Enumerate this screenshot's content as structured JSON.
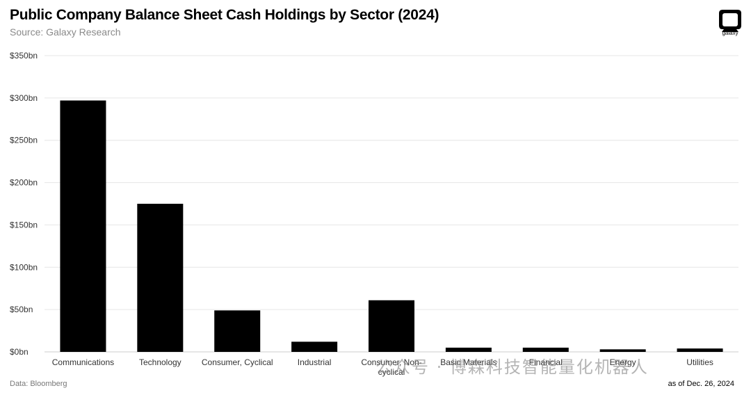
{
  "header": {
    "title": "Public Company Balance Sheet Cash Holdings by Sector (2024)",
    "subtitle": "Source: Galaxy Research",
    "logo_text": "galaxy"
  },
  "footer": {
    "data_source": "Data: Bloomberg",
    "as_of": "as of Dec. 26, 2024"
  },
  "watermark": "公众号 · 博森科技智能量化机器人",
  "colors": {
    "bar": "#000000",
    "grid": "#e6e6e6",
    "axis": "#cccccc"
  },
  "chart_data": {
    "type": "bar",
    "title": "Public Company Balance Sheet Cash Holdings by Sector (2024)",
    "subtitle": "Source: Galaxy Research",
    "xlabel": "",
    "ylabel": "",
    "ylim": [
      0,
      350
    ],
    "y_ticks": [
      {
        "value": 0,
        "label": "$0bn"
      },
      {
        "value": 50,
        "label": "$50bn"
      },
      {
        "value": 100,
        "label": "$100bn"
      },
      {
        "value": 150,
        "label": "$150bn"
      },
      {
        "value": 200,
        "label": "$200bn"
      },
      {
        "value": 250,
        "label": "$250bn"
      },
      {
        "value": 300,
        "label": "$300bn"
      },
      {
        "value": 350,
        "label": "$350bn"
      }
    ],
    "grid": true,
    "legend": "none",
    "categories": [
      [
        "Communications"
      ],
      [
        "Technology"
      ],
      [
        "Consumer, Cyclical"
      ],
      [
        "Industrial"
      ],
      [
        "Consumer, Non-",
        "cyclical"
      ],
      [
        "Basic Materials"
      ],
      [
        "Financial"
      ],
      [
        "Energy"
      ],
      [
        "Utilities"
      ]
    ],
    "values": [
      297,
      175,
      49,
      12,
      61,
      5,
      5,
      3,
      4
    ]
  }
}
